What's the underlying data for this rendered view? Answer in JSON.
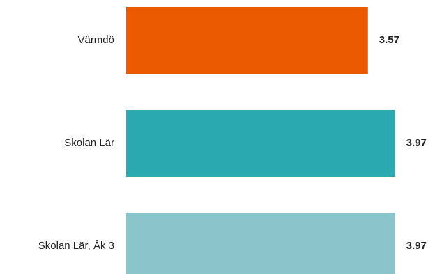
{
  "chart_data": {
    "type": "bar",
    "orientation": "horizontal",
    "categories": [
      "Värmdö",
      "Skolan Lär",
      "Skolan Lär, Åk 3"
    ],
    "values": [
      3.57,
      3.97,
      3.97
    ],
    "value_labels": [
      "3.57",
      "3.97",
      "3.97"
    ],
    "colors": [
      "#eb5a00",
      "#2aa9b1",
      "#8cc4cb"
    ],
    "xlim": [
      0,
      4.2
    ],
    "grid": false,
    "legend": "none",
    "title": "",
    "xlabel": "",
    "ylabel": ""
  }
}
